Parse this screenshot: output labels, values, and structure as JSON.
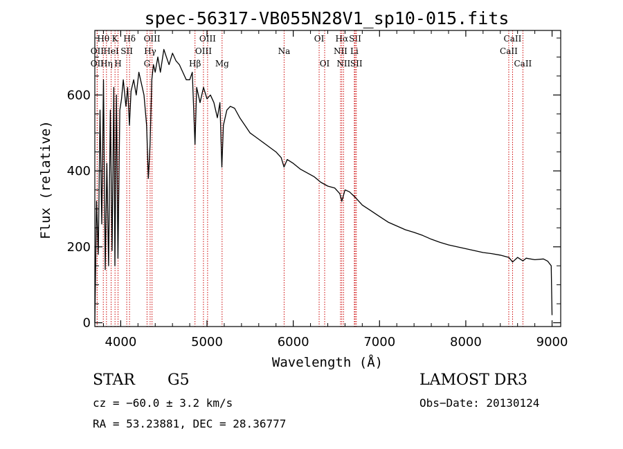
{
  "chart_data": {
    "type": "line",
    "title": "spec-56317-VB055N28V1_sp10-015.fits",
    "xlabel": "Wavelength (Å)",
    "ylabel": "Flux (relative)",
    "xlim": [
      3700,
      9100
    ],
    "ylim": [
      -10,
      770
    ],
    "xticks": [
      4000,
      5000,
      6000,
      7000,
      8000,
      9000
    ],
    "xtick_labels": [
      "4000",
      "5000",
      "6000",
      "7000",
      "8000",
      "9000"
    ],
    "yticks": [
      0,
      200,
      400,
      600
    ],
    "ytick_labels": [
      "0",
      "200",
      "400",
      "600"
    ],
    "spectrum": {
      "x": [
        3700,
        3720,
        3740,
        3760,
        3780,
        3800,
        3820,
        3840,
        3860,
        3880,
        3900,
        3920,
        3933,
        3950,
        3968,
        3990,
        4010,
        4030,
        4060,
        4080,
        4101,
        4120,
        4150,
        4180,
        4210,
        4240,
        4270,
        4300,
        4320,
        4340,
        4360,
        4380,
        4400,
        4430,
        4460,
        4500,
        4530,
        4560,
        4600,
        4640,
        4680,
        4720,
        4760,
        4800,
        4830,
        4861,
        4880,
        4920,
        4960,
        5000,
        5040,
        5080,
        5120,
        5150,
        5172,
        5190,
        5230,
        5270,
        5320,
        5380,
        5440,
        5500,
        5560,
        5620,
        5680,
        5740,
        5800,
        5860,
        5893,
        5930,
        6000,
        6080,
        6160,
        6240,
        6320,
        6400,
        6480,
        6540,
        6563,
        6600,
        6650,
        6720,
        6800,
        6900,
        7000,
        7100,
        7200,
        7300,
        7400,
        7500,
        7600,
        7700,
        7800,
        7900,
        8000,
        8100,
        8200,
        8300,
        8400,
        8500,
        8542,
        8600,
        8662,
        8700,
        8800,
        8900,
        8950,
        8990,
        9000
      ],
      "flux": [
        0,
        320,
        180,
        560,
        260,
        640,
        140,
        420,
        150,
        560,
        190,
        620,
        150,
        600,
        170,
        560,
        590,
        640,
        570,
        620,
        520,
        610,
        640,
        600,
        660,
        630,
        600,
        520,
        380,
        470,
        640,
        680,
        660,
        700,
        660,
        720,
        700,
        680,
        710,
        690,
        680,
        660,
        640,
        640,
        660,
        470,
        620,
        580,
        620,
        590,
        600,
        580,
        540,
        580,
        410,
        520,
        560,
        570,
        565,
        540,
        520,
        500,
        490,
        480,
        470,
        460,
        450,
        435,
        410,
        430,
        420,
        405,
        395,
        385,
        370,
        360,
        355,
        340,
        320,
        350,
        345,
        330,
        310,
        295,
        280,
        265,
        255,
        245,
        238,
        230,
        220,
        212,
        205,
        200,
        195,
        190,
        185,
        182,
        178,
        172,
        160,
        172,
        163,
        170,
        166,
        168,
        162,
        150,
        20
      ]
    },
    "lines": [
      {
        "label": "Hθ",
        "x": 3798,
        "row": 0
      },
      {
        "label": "K",
        "x": 3934,
        "row": 0
      },
      {
        "label": "Hδ",
        "x": 4102,
        "row": 0
      },
      {
        "label": "OII",
        "x": 3727,
        "row": 1
      },
      {
        "label": "HeI",
        "x": 3889,
        "row": 1
      },
      {
        "label": "SII",
        "x": 4070,
        "row": 1
      },
      {
        "label": "OII",
        "x": 3727,
        "row": 2
      },
      {
        "label": "Hη",
        "x": 3835,
        "row": 2
      },
      {
        "label": "H",
        "x": 3969,
        "row": 2
      },
      {
        "label": "OIII",
        "x": 4363,
        "row": 0
      },
      {
        "label": "Hγ",
        "x": 4341,
        "row": 1
      },
      {
        "label": "G",
        "x": 4305,
        "row": 2
      },
      {
        "label": "OIII",
        "x": 5007,
        "row": 0
      },
      {
        "label": "OIII",
        "x": 4959,
        "row": 1
      },
      {
        "label": "Hβ",
        "x": 4861,
        "row": 2
      },
      {
        "label": "Mg",
        "x": 5175,
        "row": 2
      },
      {
        "label": "Na",
        "x": 5894,
        "row": 1
      },
      {
        "label": "OI",
        "x": 6300,
        "row": 0
      },
      {
        "label": "OI",
        "x": 6364,
        "row": 2
      },
      {
        "label": "Hα",
        "x": 6563,
        "row": 0
      },
      {
        "label": "SII",
        "x": 6717,
        "row": 0
      },
      {
        "label": "NII",
        "x": 6548,
        "row": 1
      },
      {
        "label": "Li",
        "x": 6708,
        "row": 1
      },
      {
        "label": "NII",
        "x": 6583,
        "row": 2
      },
      {
        "label": "SII",
        "x": 6731,
        "row": 2
      },
      {
        "label": "CaII",
        "x": 8542,
        "row": 0
      },
      {
        "label": "CaII",
        "x": 8498,
        "row": 1
      },
      {
        "label": "CaII",
        "x": 8662,
        "row": 2
      }
    ]
  },
  "info": {
    "object_class": "STAR",
    "subclass": "G5",
    "survey": "LAMOST DR3",
    "cz": "cz = −60.0 ± 3.2 km/s",
    "obs_date": "Obs−Date: 20130124",
    "coords": "RA =  53.23881, DEC =  28.36777"
  },
  "colors": {
    "spectrum": "#000000",
    "line_markers": "#cc0000",
    "axes": "#000000",
    "background": "#ffffff"
  }
}
